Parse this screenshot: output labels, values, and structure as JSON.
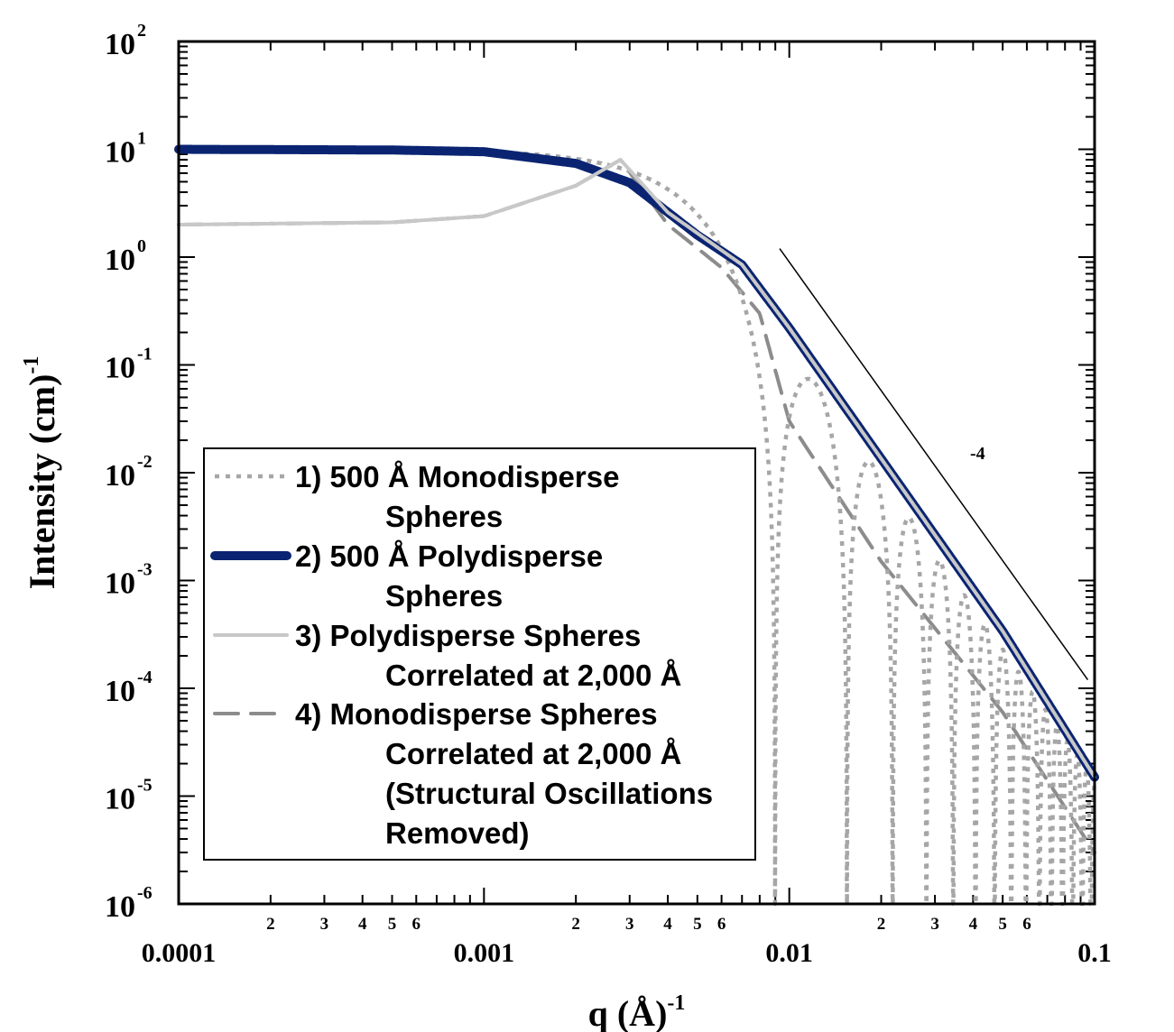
{
  "chart_data": {
    "type": "line",
    "xscale": "log",
    "yscale": "log",
    "xlim": [
      0.0001,
      0.1
    ],
    "ylim": [
      1e-06,
      100
    ],
    "xlabel": {
      "main": "q (Å)",
      "sup": "-1"
    },
    "ylabel": {
      "main": "Intensity (cm)",
      "sup": "-1"
    },
    "x_major_ticks": [
      "0.0001",
      "0.001",
      "0.01",
      "0.1"
    ],
    "x_minor_labels": [
      "2",
      "3",
      "4",
      "5",
      "6"
    ],
    "y_major_ticks": [
      {
        "base": "10",
        "exp": "2"
      },
      {
        "base": "10",
        "exp": "1"
      },
      {
        "base": "10",
        "exp": "0"
      },
      {
        "base": "10",
        "exp": "-1"
      },
      {
        "base": "10",
        "exp": "-2"
      },
      {
        "base": "10",
        "exp": "-3"
      },
      {
        "base": "10",
        "exp": "-4"
      },
      {
        "base": "10",
        "exp": "-5"
      },
      {
        "base": "10",
        "exp": "-6"
      }
    ],
    "annotations": [
      {
        "text": "-4",
        "type": "slope-line",
        "from": [
          0.0093,
          1.2
        ],
        "to": [
          0.095,
          0.00012
        ]
      }
    ],
    "legend": {
      "placement": "lower-left",
      "entries": [
        {
          "lines": [
            "1) 500 Å Monodisperse",
            "Spheres"
          ]
        },
        {
          "lines": [
            "2) 500 Å Polydisperse",
            "Spheres"
          ]
        },
        {
          "lines": [
            "3) Polydisperse Spheres",
            "Correlated at 2,000 Å"
          ]
        },
        {
          "lines": [
            "4) Monodisperse Spheres",
            "Correlated at 2,000 Å",
            "(Structural Oscillations",
            "Removed)"
          ]
        }
      ]
    },
    "series": [
      {
        "label": "1) 500 Å Monodisperse Spheres",
        "color": "#a6a6a6",
        "style": "dotted",
        "model": "monodisperse-sphere",
        "radius": 500,
        "forward_intensity": 10,
        "x": [
          0.0001,
          0.001,
          0.002,
          0.003,
          0.005,
          0.007,
          0.009,
          0.0115,
          0.0155,
          0.018,
          0.03,
          0.05,
          0.1
        ],
        "y": [
          10,
          9.9,
          9.5,
          8.1,
          2.6,
          0.5,
          0.00012,
          0.06,
          2.6e-06,
          0.012,
          0.0004,
          4e-05,
          1.2e-06
        ]
      },
      {
        "label": "2) 500 Å Polydisperse Spheres",
        "color": "#0a2472",
        "style": "solid-thick",
        "x": [
          0.0001,
          0.0005,
          0.001,
          0.002,
          0.003,
          0.005,
          0.007,
          0.01,
          0.02,
          0.05,
          0.1
        ],
        "y": [
          10,
          9.85,
          9.5,
          7.4,
          4.9,
          1.6,
          0.85,
          0.22,
          0.0135,
          0.00034,
          1.5e-05
        ]
      },
      {
        "label": "3) Polydisperse Spheres Correlated at 2,000 Å",
        "color": "#c8c8c8",
        "style": "solid",
        "x": [
          0.0001,
          0.0005,
          0.001,
          0.002,
          0.0028,
          0.004,
          0.007,
          0.01,
          0.02,
          0.05,
          0.1
        ],
        "y": [
          2.0,
          2.1,
          2.4,
          4.6,
          8.0,
          2.6,
          0.85,
          0.22,
          0.0135,
          0.00034,
          1.5e-05
        ]
      },
      {
        "label": "4) Monodisperse Spheres Correlated at 2,000 Å",
        "color": "#8c8c8c",
        "style": "dashed",
        "x": [
          0.0001,
          0.0005,
          0.001,
          0.002,
          0.0028,
          0.004,
          0.006,
          0.008,
          0.01,
          0.02,
          0.05,
          0.1
        ],
        "y": [
          2.0,
          2.1,
          2.4,
          4.6,
          8.0,
          2.0,
          0.8,
          0.3,
          0.03,
          0.0015,
          6e-05,
          3e-06
        ]
      }
    ]
  }
}
